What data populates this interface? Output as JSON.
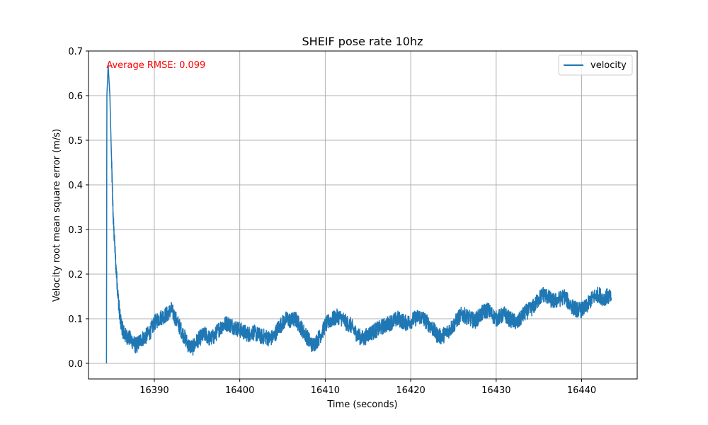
{
  "chart_data": {
    "type": "line",
    "title": "SHEIF pose rate 10hz",
    "xlabel": "Time (seconds)",
    "ylabel": "Velocity root mean square error (m/s)",
    "xlim": [
      16382.3,
      16446.5
    ],
    "ylim": [
      -0.035,
      0.7
    ],
    "xticks": [
      16390,
      16400,
      16410,
      16420,
      16430,
      16440
    ],
    "xtick_labels": [
      "16390",
      "16400",
      "16410",
      "16420",
      "16430",
      "16440"
    ],
    "yticks": [
      0.0,
      0.1,
      0.2,
      0.3,
      0.4,
      0.5,
      0.6,
      0.7
    ],
    "ytick_labels": [
      "0.0",
      "0.1",
      "0.2",
      "0.3",
      "0.4",
      "0.5",
      "0.6",
      "0.7"
    ],
    "grid": true,
    "legend_position": "top-right",
    "annotation": {
      "text": "Average RMSE: 0.099",
      "x": 16384.4,
      "y": 0.668,
      "color": "#ff0000"
    },
    "series": [
      {
        "name": "velocity",
        "color": "#1f77b4",
        "x": [
          16384.4,
          16384.45,
          16384.6,
          16384.8,
          16385.0,
          16385.2,
          16385.5,
          16385.8,
          16386.0,
          16386.3,
          16386.6,
          16387.0,
          16387.4,
          16387.8,
          16388.0,
          16388.5,
          16389.0,
          16389.5,
          16390.0,
          16390.5,
          16391.0,
          16391.5,
          16392.0,
          16392.5,
          16393.0,
          16393.5,
          16394.0,
          16394.5,
          16395.0,
          16395.5,
          16396.0,
          16396.5,
          16397.0,
          16397.5,
          16398.0,
          16398.5,
          16399.0,
          16399.5,
          16400.0,
          16400.5,
          16401.0,
          16401.5,
          16402.0,
          16402.5,
          16403.0,
          16403.5,
          16404.0,
          16404.5,
          16405.0,
          16405.5,
          16406.0,
          16406.5,
          16407.0,
          16407.5,
          16408.0,
          16408.5,
          16409.0,
          16409.5,
          16410.0,
          16410.5,
          16411.0,
          16411.5,
          16412.0,
          16412.5,
          16413.0,
          16413.5,
          16414.0,
          16414.5,
          16415.0,
          16415.5,
          16416.0,
          16416.5,
          16417.0,
          16417.5,
          16418.0,
          16418.5,
          16419.0,
          16419.5,
          16420.0,
          16420.5,
          16421.0,
          16421.5,
          16422.0,
          16422.5,
          16423.0,
          16423.5,
          16424.0,
          16424.5,
          16425.0,
          16425.5,
          16426.0,
          16426.5,
          16427.0,
          16427.5,
          16428.0,
          16428.5,
          16429.0,
          16429.5,
          16430.0,
          16430.5,
          16431.0,
          16431.5,
          16432.0,
          16432.5,
          16433.0,
          16433.5,
          16434.0,
          16434.5,
          16435.0,
          16435.5,
          16436.0,
          16436.5,
          16437.0,
          16437.5,
          16438.0,
          16438.5,
          16439.0,
          16439.5,
          16440.0,
          16440.5,
          16441.0,
          16441.5,
          16442.0,
          16442.5,
          16443.0,
          16443.5
        ],
        "y": [
          0.0,
          0.6,
          0.668,
          0.6,
          0.45,
          0.32,
          0.22,
          0.14,
          0.1,
          0.075,
          0.062,
          0.058,
          0.05,
          0.04,
          0.042,
          0.055,
          0.06,
          0.07,
          0.09,
          0.1,
          0.105,
          0.11,
          0.12,
          0.1,
          0.08,
          0.06,
          0.04,
          0.035,
          0.05,
          0.06,
          0.065,
          0.055,
          0.06,
          0.075,
          0.085,
          0.09,
          0.085,
          0.08,
          0.075,
          0.07,
          0.065,
          0.07,
          0.065,
          0.06,
          0.06,
          0.055,
          0.06,
          0.08,
          0.09,
          0.1,
          0.095,
          0.1,
          0.085,
          0.07,
          0.055,
          0.04,
          0.05,
          0.065,
          0.085,
          0.095,
          0.1,
          0.105,
          0.1,
          0.09,
          0.085,
          0.07,
          0.06,
          0.055,
          0.065,
          0.07,
          0.075,
          0.08,
          0.085,
          0.09,
          0.095,
          0.1,
          0.095,
          0.09,
          0.095,
          0.1,
          0.105,
          0.1,
          0.09,
          0.08,
          0.065,
          0.06,
          0.065,
          0.075,
          0.085,
          0.1,
          0.11,
          0.105,
          0.1,
          0.095,
          0.105,
          0.115,
          0.12,
          0.11,
          0.1,
          0.105,
          0.11,
          0.1,
          0.095,
          0.09,
          0.105,
          0.115,
          0.12,
          0.13,
          0.145,
          0.155,
          0.15,
          0.14,
          0.14,
          0.145,
          0.15,
          0.135,
          0.125,
          0.12,
          0.12,
          0.125,
          0.14,
          0.15,
          0.155,
          0.145,
          0.15,
          0.145
        ],
        "noise_amplitude": 0.018
      }
    ]
  }
}
